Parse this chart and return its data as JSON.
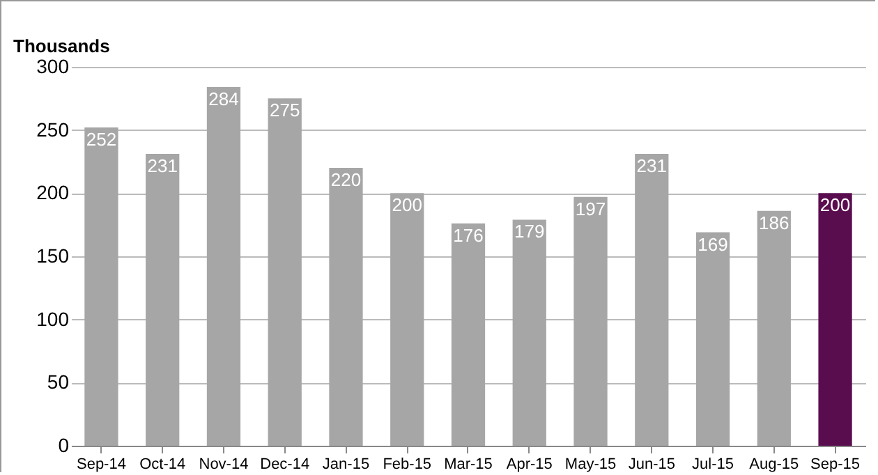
{
  "chart_data": {
    "type": "bar",
    "ylabel": "Thousands",
    "categories": [
      "Sep-14",
      "Oct-14",
      "Nov-14",
      "Dec-14",
      "Jan-15",
      "Feb-15",
      "Mar-15",
      "Apr-15",
      "May-15",
      "Jun-15",
      "Jul-15",
      "Aug-15",
      "Sep-15"
    ],
    "values": [
      252,
      231,
      284,
      275,
      220,
      200,
      176,
      179,
      197,
      231,
      169,
      186,
      200
    ],
    "colors": [
      "#a6a6a6",
      "#a6a6a6",
      "#a6a6a6",
      "#a6a6a6",
      "#a6a6a6",
      "#a6a6a6",
      "#a6a6a6",
      "#a6a6a6",
      "#a6a6a6",
      "#a6a6a6",
      "#a6a6a6",
      "#a6a6a6",
      "#5a0d4e"
    ],
    "ylim": [
      0,
      300
    ],
    "yticks": [
      0,
      50,
      100,
      150,
      200,
      250,
      300
    ],
    "grid": "y",
    "data_labels": true
  }
}
